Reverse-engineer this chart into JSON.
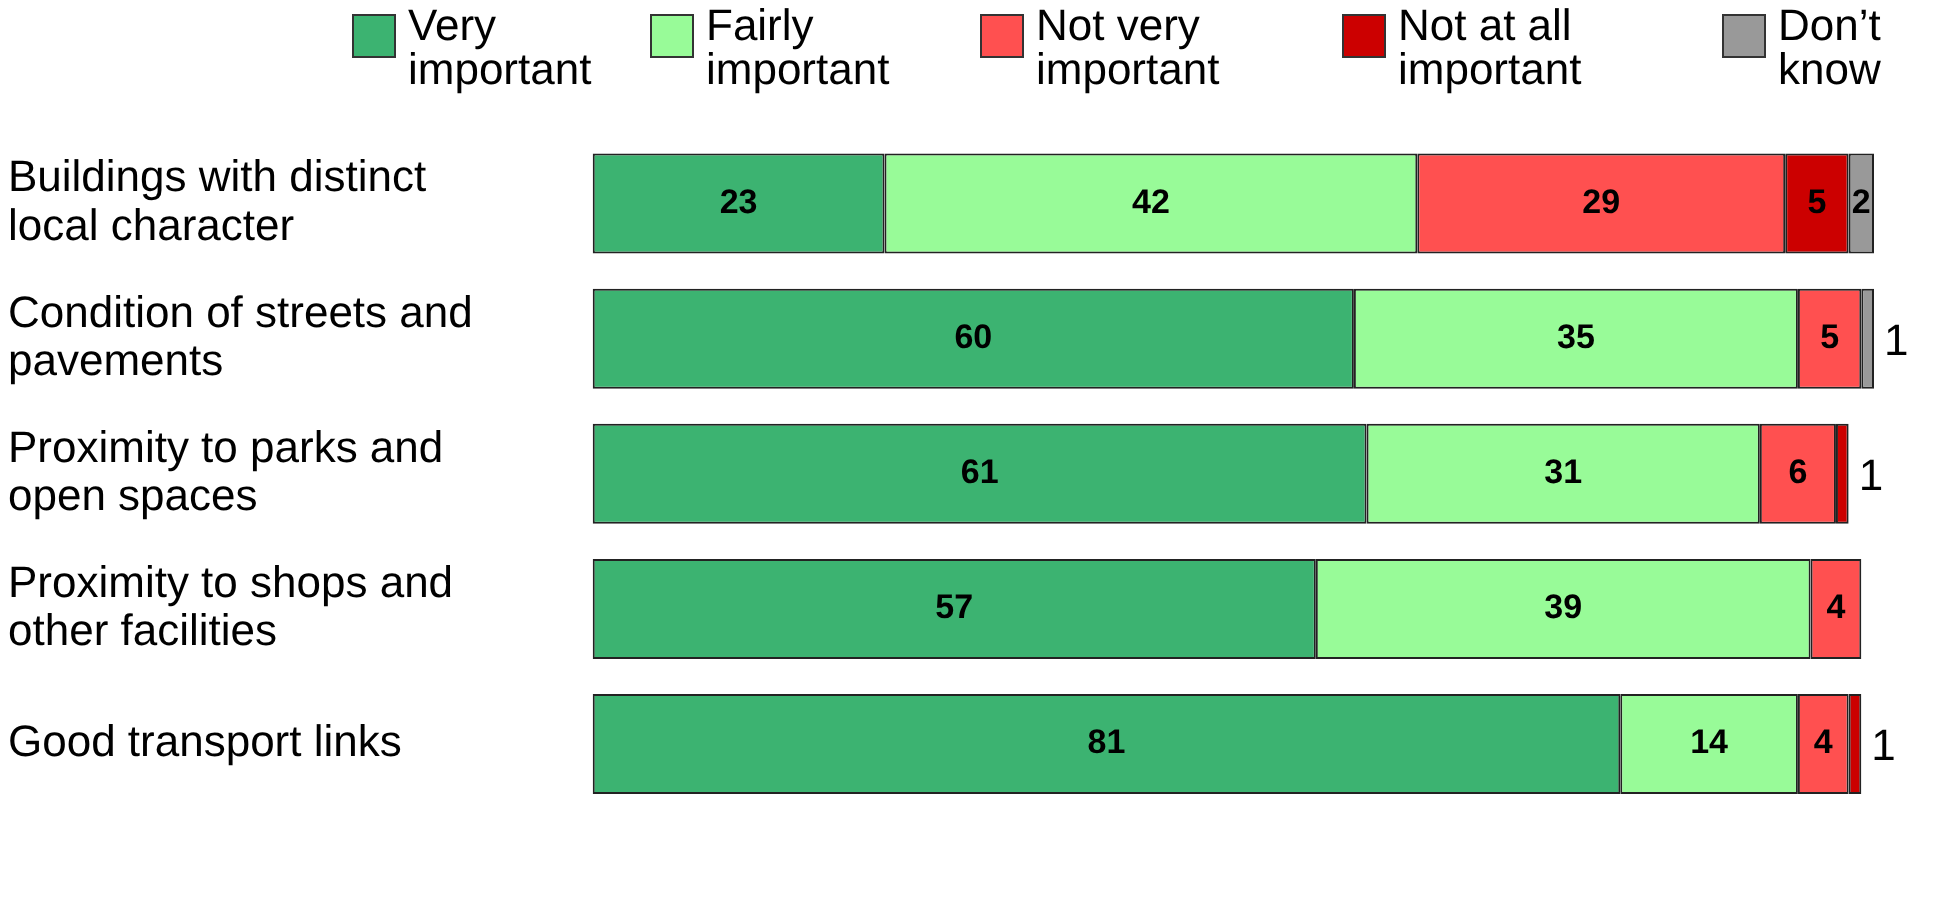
{
  "chart_data": {
    "type": "bar",
    "orientation": "horizontal",
    "stacked": true,
    "data_labels": true,
    "legend": "top",
    "grid": false,
    "tick_labels": "y",
    "xlim": [
      0,
      101
    ],
    "categories": [
      "Buildings with distinct local character",
      "Condition of streets and pavements",
      "Proximity to parks and open spaces",
      "Proximity to shops and other facilities",
      "Good transport links"
    ],
    "series": [
      {
        "name": "Very important",
        "color": "#3cb371",
        "values": [
          23,
          60,
          61,
          57,
          81
        ]
      },
      {
        "name": "Fairly important",
        "color": "#98fb98",
        "values": [
          42,
          35,
          31,
          39,
          14
        ]
      },
      {
        "name": "Not very important",
        "color": "#ff5050",
        "values": [
          29,
          5,
          6,
          4,
          4
        ]
      },
      {
        "name": "Not at all important",
        "color": "#cc0000",
        "values": [
          5,
          null,
          1,
          null,
          1
        ]
      },
      {
        "name": "Don’t know",
        "color": "#999999",
        "values": [
          2,
          1,
          null,
          null,
          null
        ]
      }
    ]
  }
}
